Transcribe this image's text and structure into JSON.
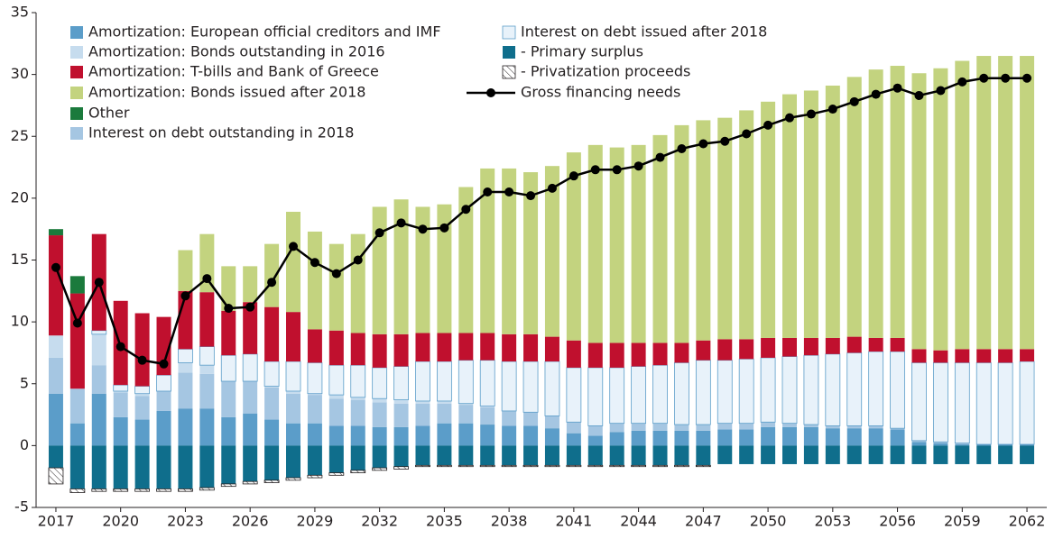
{
  "chart_data": {
    "type": "bar",
    "categories": [
      "2017",
      null,
      null,
      "2020",
      null,
      null,
      "2023",
      null,
      null,
      "2026",
      null,
      null,
      "2029",
      null,
      null,
      "2032",
      null,
      null,
      "2035",
      null,
      null,
      "2038",
      null,
      null,
      "2041",
      null,
      null,
      "2044",
      null,
      null,
      "2047",
      null,
      null,
      "2050",
      null,
      null,
      "2053",
      null,
      null,
      "2056",
      null,
      null,
      "2059",
      null,
      null,
      "2062"
    ],
    "ylim": [
      -5,
      35
    ],
    "yticks": [
      -5,
      0,
      5,
      10,
      15,
      20,
      25,
      30,
      35
    ],
    "series": [
      {
        "name": "Amortization: European official creditors  and IMF",
        "color": "#5b9dc9",
        "values": [
          4.2,
          1.8,
          4.2,
          2.3,
          2.1,
          2.8,
          3.0,
          3.0,
          2.3,
          2.6,
          2.1,
          1.8,
          1.8,
          1.6,
          1.6,
          1.5,
          1.5,
          1.6,
          1.8,
          1.8,
          1.7,
          1.6,
          1.6,
          1.4,
          1.0,
          0.8,
          1.1,
          1.2,
          1.2,
          1.2,
          1.2,
          1.3,
          1.3,
          1.5,
          1.5,
          1.5,
          1.4,
          1.4,
          1.4,
          1.3,
          0.3,
          0.2,
          0.1,
          0.1,
          0.1,
          0.1
        ]
      },
      {
        "name": "Amortization: Bonds outstanding in 2016",
        "color": "#c6dcee",
        "values": [
          1.8,
          0,
          2.5,
          0.1,
          0.2,
          0,
          0.8,
          0.7,
          0,
          0,
          0.1,
          0.2,
          0.1,
          0.3,
          0.2,
          0.3,
          0.3,
          0.2,
          0.2,
          0.1,
          0.1,
          0,
          0,
          0,
          0,
          0,
          0,
          0,
          0,
          0,
          0,
          0,
          0,
          0,
          0,
          0,
          0,
          0,
          0,
          0,
          0,
          0,
          0,
          0,
          0,
          0
        ]
      },
      {
        "name": "Amortization: T-bills and Bank of Greece",
        "color": "#c0102e",
        "values": [
          8.1,
          7.7,
          7.8,
          6.8,
          5.9,
          4.7,
          4.7,
          4.4,
          3.6,
          4.2,
          4.4,
          4.0,
          2.7,
          2.8,
          2.6,
          2.7,
          2.6,
          2.3,
          2.3,
          2.2,
          2.2,
          2.2,
          2.2,
          2.0,
          2.2,
          2.0,
          2.0,
          1.9,
          1.8,
          1.6,
          1.6,
          1.7,
          1.6,
          1.6,
          1.5,
          1.4,
          1.3,
          1.3,
          1.1,
          1.1,
          1.1,
          1.0,
          1.1,
          1.1,
          1.1,
          1.0
        ]
      },
      {
        "name": "Amortization: Bonds issued after 2018",
        "color": "#c3d37f",
        "values": [
          0,
          0,
          0,
          0,
          0,
          0,
          3.3,
          4.7,
          3.6,
          2.9,
          5.1,
          8.1,
          7.9,
          7.0,
          8.0,
          10.3,
          10.9,
          10.2,
          10.4,
          11.8,
          13.3,
          13.4,
          13.1,
          13.8,
          15.2,
          16.0,
          15.8,
          16.0,
          16.8,
          17.6,
          17.8,
          17.9,
          18.5,
          19.1,
          19.7,
          20.0,
          20.4,
          21.0,
          21.7,
          22.0,
          22.3,
          22.8,
          23.3,
          23.7,
          23.7,
          23.7
        ]
      },
      {
        "name": "Other",
        "color": "#1b7a3c",
        "values": [
          0.5,
          1.4,
          0,
          0,
          0,
          0,
          0,
          0,
          0,
          0,
          0,
          0,
          0,
          0,
          0,
          0,
          0,
          0,
          0,
          0,
          0,
          0,
          0,
          0,
          0,
          0,
          0,
          0,
          0,
          0,
          0,
          0,
          0,
          0,
          0,
          0,
          0,
          0,
          0,
          0,
          0,
          0,
          0,
          0,
          0,
          0
        ]
      },
      {
        "name": "Interest on debt outstanding in 2018",
        "color": "#a5c6e2",
        "values": [
          2.9,
          2.8,
          2.3,
          2.0,
          1.9,
          1.6,
          2.9,
          2.8,
          2.9,
          2.6,
          2.6,
          2.4,
          2.3,
          2.2,
          2.1,
          2.0,
          1.9,
          1.8,
          1.6,
          1.5,
          1.4,
          1.2,
          1.1,
          1.0,
          0.9,
          0.8,
          0.7,
          0.6,
          0.6,
          0.5,
          0.5,
          0.5,
          0.5,
          0.4,
          0.3,
          0.2,
          0.2,
          0.2,
          0.2,
          0.1,
          0.1,
          0.1,
          0.1,
          0,
          0,
          0
        ]
      },
      {
        "name": "Interest on debt issued after 2018",
        "color": "#e8f2fa",
        "values": [
          0,
          0,
          0.3,
          0.5,
          0.6,
          1.3,
          1.1,
          1.5,
          2.1,
          2.2,
          2.0,
          2.4,
          2.5,
          2.4,
          2.6,
          2.5,
          2.7,
          3.2,
          3.2,
          3.5,
          3.7,
          4.0,
          4.1,
          4.4,
          4.4,
          4.7,
          4.5,
          4.6,
          4.7,
          5.0,
          5.2,
          5.1,
          5.2,
          5.2,
          5.4,
          5.6,
          5.8,
          5.9,
          6.0,
          6.2,
          6.3,
          6.4,
          6.5,
          6.6,
          6.6,
          6.7
        ]
      },
      {
        "name": " - Primary surplus",
        "color": "#0f6e8c",
        "values": [
          -1.8,
          -3.5,
          -3.5,
          -3.5,
          -3.5,
          -3.5,
          -3.5,
          -3.4,
          -3.1,
          -2.9,
          -2.8,
          -2.6,
          -2.4,
          -2.2,
          -2.0,
          -1.8,
          -1.7,
          -1.6,
          -1.6,
          -1.6,
          -1.6,
          -1.6,
          -1.6,
          -1.6,
          -1.6,
          -1.6,
          -1.6,
          -1.6,
          -1.6,
          -1.6,
          -1.6,
          -1.5,
          -1.5,
          -1.5,
          -1.5,
          -1.5,
          -1.5,
          -1.5,
          -1.5,
          -1.5,
          -1.5,
          -1.5,
          -1.5,
          -1.5,
          -1.5,
          -1.5
        ]
      },
      {
        "name": " - Privatization proceeds",
        "color": "#ffffff",
        "values": [
          -1.3,
          -0.3,
          -0.2,
          -0.2,
          -0.2,
          -0.2,
          -0.2,
          -0.2,
          -0.2,
          -0.2,
          -0.2,
          -0.2,
          -0.2,
          -0.2,
          -0.2,
          -0.2,
          -0.2,
          -0.1,
          -0.1,
          -0.1,
          -0.1,
          -0.1,
          -0.1,
          -0.1,
          -0.1,
          -0.1,
          -0.1,
          -0.1,
          -0.1,
          -0.1,
          -0.1,
          0,
          0,
          0,
          0,
          0,
          0,
          0,
          0,
          0,
          0,
          0,
          0,
          0,
          0,
          0
        ]
      },
      {
        "name": "Gross financing needs",
        "type": "line",
        "color": "#000000",
        "values": [
          14.4,
          9.9,
          13.2,
          8.0,
          6.9,
          6.6,
          12.1,
          13.5,
          11.1,
          11.2,
          13.2,
          16.1,
          14.8,
          13.9,
          15.0,
          17.2,
          18.0,
          17.5,
          17.6,
          19.1,
          20.5,
          20.5,
          20.2,
          20.8,
          21.8,
          22.3,
          22.3,
          22.6,
          23.3,
          24.0,
          24.4,
          24.6,
          25.2,
          25.9,
          26.5,
          26.8,
          27.2,
          27.8,
          28.4,
          28.9,
          28.3,
          28.7,
          29.4,
          29.7,
          29.7,
          29.7
        ]
      }
    ]
  }
}
